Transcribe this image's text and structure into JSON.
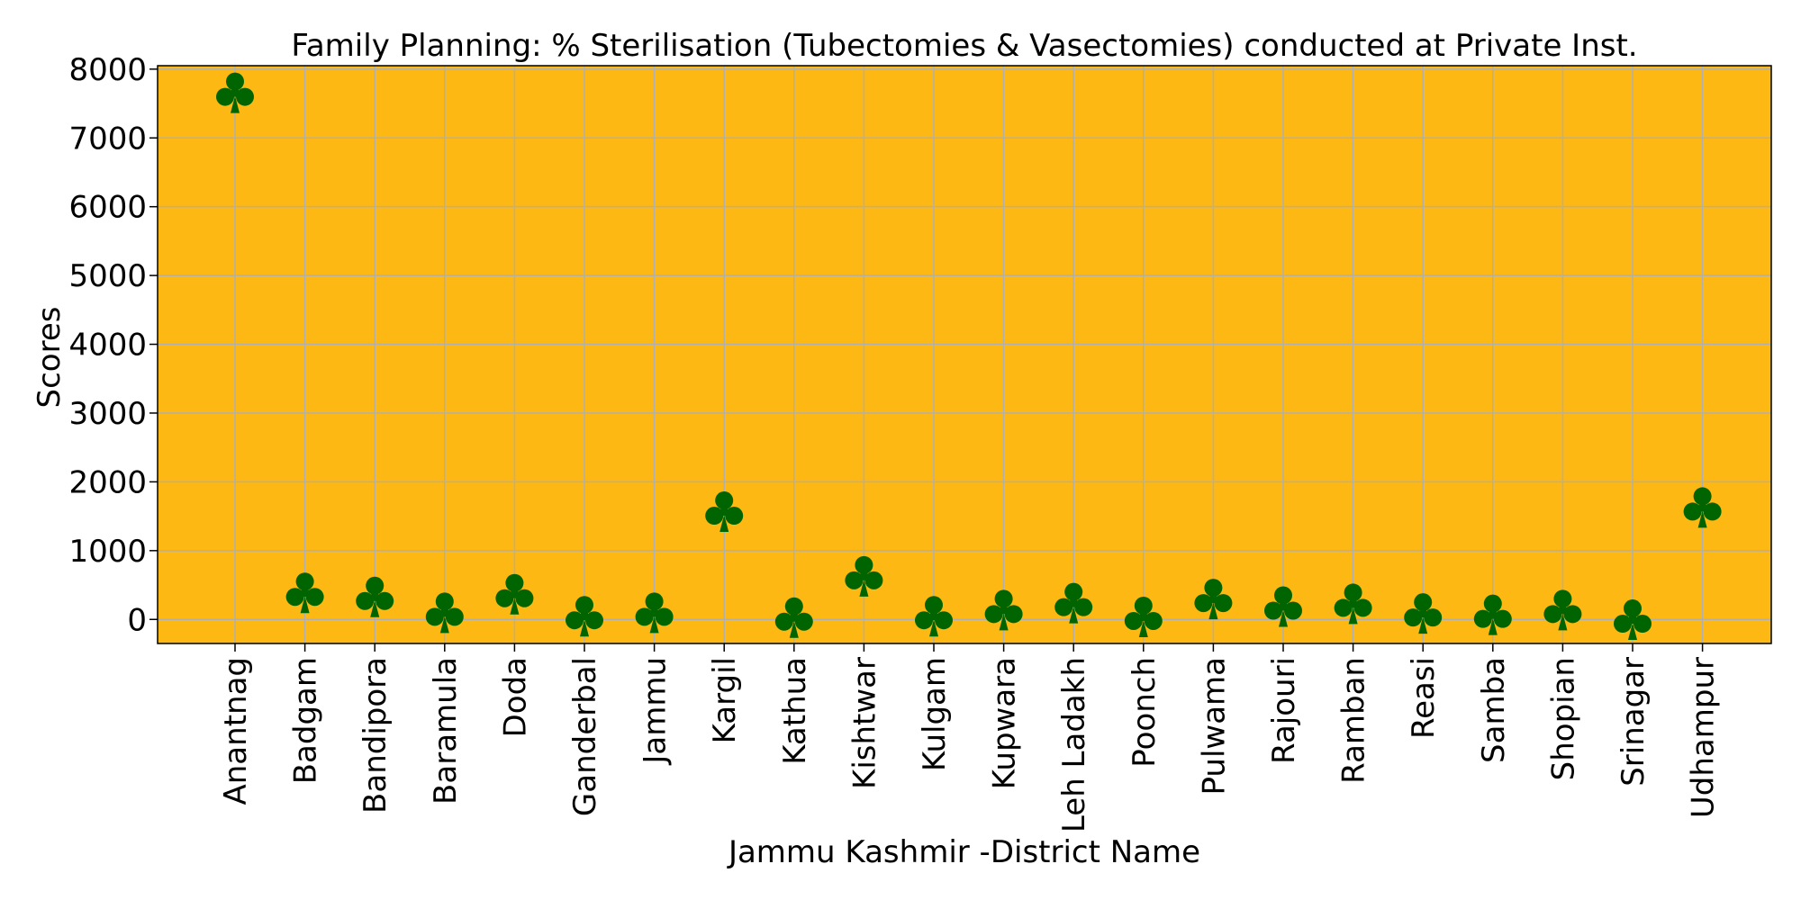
{
  "chart_data": {
    "type": "scatter",
    "title": "Family Planning: % Sterilisation (Tubectomies & Vasectomies) conducted at Private Inst.",
    "xlabel": "Jammu Kashmir -District Name",
    "ylabel": "Scores",
    "categories": [
      "Anantnag",
      "Badgam",
      "Bandipora",
      "Baramula",
      "Doda",
      "Ganderbal",
      "Jammu",
      "Kargil",
      "Kathua",
      "Kishtwar",
      "Kulgam",
      "Kupwara",
      "Leh Ladakh",
      "Poonch",
      "Pulwama",
      "Rajouri",
      "Ramban",
      "Reasi",
      "Samba",
      "Shopian",
      "Srinagar",
      "Udhampur"
    ],
    "values": [
      7650,
      380,
      320,
      90,
      360,
      40,
      90,
      1560,
      20,
      620,
      40,
      130,
      230,
      30,
      290,
      180,
      220,
      80,
      60,
      130,
      -10,
      1620
    ],
    "yticks": [
      0,
      1000,
      2000,
      3000,
      4000,
      5000,
      6000,
      7000,
      8000
    ],
    "ylim": [
      -350,
      8050
    ],
    "grid": true,
    "marker": "club",
    "colors": {
      "plot_background": "#FDB813",
      "marker": "#006400",
      "grid": "#B0B0B0",
      "axes": "#000000"
    }
  }
}
